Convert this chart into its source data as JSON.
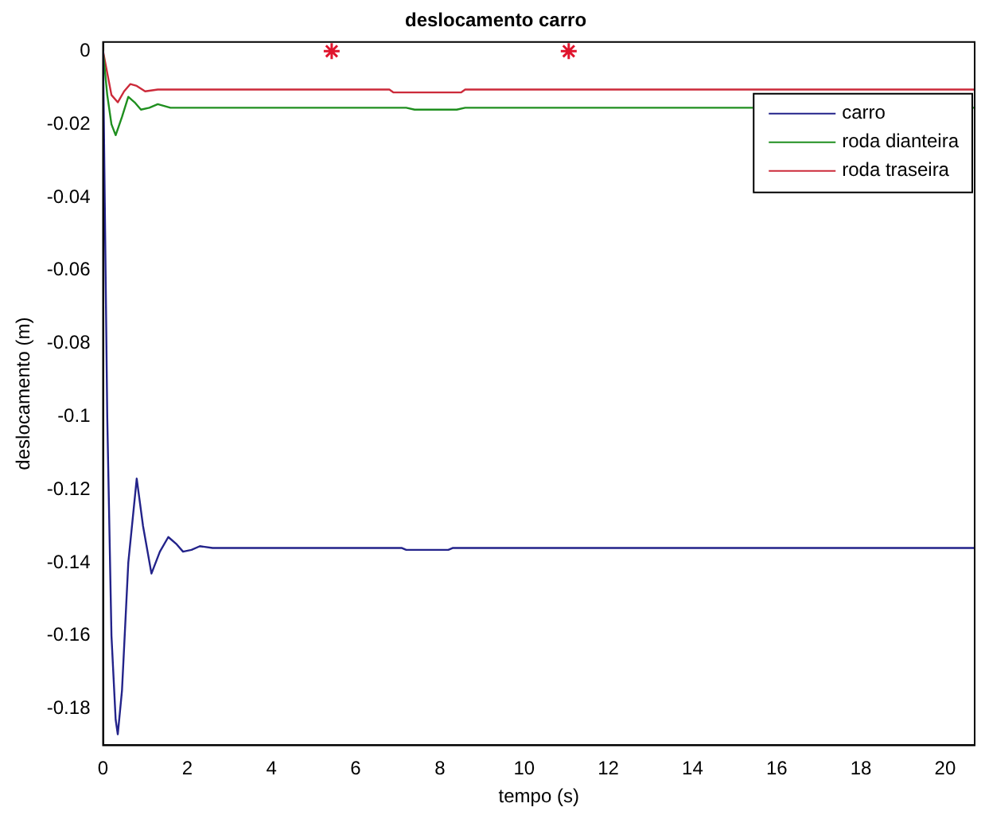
{
  "chart_data": {
    "type": "line",
    "title": "deslocamento carro",
    "xlabel": "tempo (s)",
    "ylabel": "deslocamento (m)",
    "xlim": [
      0,
      20.7
    ],
    "xticks": [
      0,
      2,
      4,
      6,
      8,
      10,
      12,
      14,
      16,
      18,
      20
    ],
    "ylim": [
      -0.19,
      0.0025
    ],
    "yticks": [
      0,
      -0.02,
      -0.04,
      -0.06,
      -0.08,
      -0.1,
      -0.12,
      -0.14,
      -0.16,
      -0.18
    ],
    "grid": false,
    "legend": "top right",
    "line_style": "solid",
    "marker": "none",
    "series": [
      {
        "name": "carro",
        "color": "#23238a",
        "x": [
          0,
          0.1,
          0.2,
          0.3,
          0.35,
          0.45,
          0.6,
          0.8,
          0.95,
          1.15,
          1.35,
          1.55,
          1.75,
          1.9,
          2.1,
          2.3,
          2.6,
          7.1,
          7.2,
          8.2,
          8.3,
          20.7
        ],
        "values": [
          0,
          -0.1,
          -0.16,
          -0.183,
          -0.187,
          -0.175,
          -0.14,
          -0.117,
          -0.13,
          -0.143,
          -0.137,
          -0.133,
          -0.135,
          -0.137,
          -0.1365,
          -0.1355,
          -0.136,
          -0.136,
          -0.1365,
          -0.1365,
          -0.136,
          -0.136
        ]
      },
      {
        "name": "roda dianteira",
        "color": "#1f8f1f",
        "x": [
          0,
          0.1,
          0.2,
          0.3,
          0.45,
          0.6,
          0.75,
          0.9,
          1.1,
          1.3,
          1.6,
          2,
          7.2,
          7.4,
          8.4,
          8.6,
          20.7
        ],
        "values": [
          0,
          -0.012,
          -0.02,
          -0.023,
          -0.018,
          -0.0125,
          -0.014,
          -0.016,
          -0.0155,
          -0.0145,
          -0.0155,
          -0.0155,
          -0.0155,
          -0.016,
          -0.016,
          -0.0155,
          -0.0155
        ]
      },
      {
        "name": "roda traseira",
        "color": "#cc2a3a",
        "x": [
          0,
          0.1,
          0.2,
          0.35,
          0.5,
          0.65,
          0.8,
          1,
          1.3,
          6.8,
          6.9,
          8.5,
          8.6,
          20.7
        ],
        "values": [
          0,
          -0.006,
          -0.012,
          -0.014,
          -0.011,
          -0.009,
          -0.0095,
          -0.011,
          -0.0105,
          -0.0105,
          -0.0113,
          -0.0113,
          -0.0105,
          -0.0105
        ]
      },
      {
        "type": "scatter",
        "color": "#e0142d",
        "marker": "cross",
        "x": [
          5.43,
          11.06
        ],
        "values": [
          0,
          0
        ]
      }
    ]
  }
}
